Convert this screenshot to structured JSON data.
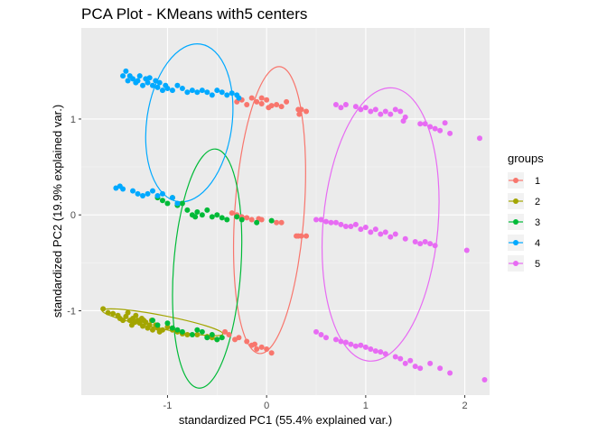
{
  "chart_data": {
    "type": "scatter",
    "title": "PCA Plot - KMeans with5 centers",
    "xlabel": "standardized PC1 (55.4% explained var.)",
    "ylabel": "standardized PC2 (19.9% explained var.)",
    "xlim": [
      -1.87,
      2.25
    ],
    "ylim": [
      -1.88,
      1.95
    ],
    "x_ticks": [
      -1,
      0,
      1,
      2
    ],
    "y_ticks": [
      -1,
      0,
      1
    ],
    "x_tick_labels": [
      "-1",
      "0",
      "1",
      "2"
    ],
    "y_tick_labels": [
      "-1",
      "0",
      "1"
    ],
    "grid": true,
    "background": "#ebebeb",
    "legend": {
      "title": "groups",
      "position": "right",
      "entries": [
        "1",
        "2",
        "3",
        "4",
        "5"
      ]
    },
    "series": [
      {
        "name": "1",
        "color": "#f8766d",
        "ellipse": {
          "cx": 0.03,
          "cy": 0.05,
          "rx": 0.35,
          "ry": 1.5,
          "angle": 4
        },
        "points": [
          [
            -0.3,
            1.18
          ],
          [
            -0.25,
            1.2
          ],
          [
            -0.2,
            1.15
          ],
          [
            -0.15,
            1.22
          ],
          [
            -0.1,
            1.18
          ],
          [
            -0.05,
            1.16
          ],
          [
            0.0,
            1.2
          ],
          [
            0.05,
            1.14
          ],
          [
            0.1,
            1.15
          ],
          [
            0.15,
            1.13
          ],
          [
            0.2,
            1.18
          ],
          [
            -0.05,
            1.22
          ],
          [
            0.02,
            1.12
          ],
          [
            0.32,
            1.1
          ],
          [
            0.35,
            1.1
          ],
          [
            0.4,
            1.08
          ],
          [
            0.33,
            1.05
          ],
          [
            -0.35,
            0.02
          ],
          [
            -0.3,
            0.0
          ],
          [
            -0.25,
            -0.02
          ],
          [
            -0.2,
            -0.03
          ],
          [
            -0.15,
            -0.05
          ],
          [
            -0.08,
            -0.04
          ],
          [
            -0.05,
            -0.05
          ],
          [
            0.1,
            -0.08
          ],
          [
            0.15,
            -0.08
          ],
          [
            0.3,
            -0.22
          ],
          [
            0.32,
            -0.22
          ],
          [
            0.35,
            -0.22
          ],
          [
            0.4,
            -0.22
          ],
          [
            -0.42,
            -1.22
          ],
          [
            -0.38,
            -1.25
          ],
          [
            -0.32,
            -1.3
          ],
          [
            -0.28,
            -1.28
          ],
          [
            -0.2,
            -1.32
          ],
          [
            -0.12,
            -1.35
          ],
          [
            -0.05,
            -1.38
          ],
          [
            -0.1,
            -1.4
          ],
          [
            0.0,
            -1.4
          ],
          [
            0.05,
            -1.44
          ],
          [
            -0.15,
            -1.36
          ]
        ]
      },
      {
        "name": "2",
        "color": "#a3a500",
        "ellipse": {
          "cx": -1.05,
          "cy": -1.12,
          "rx": 0.62,
          "ry": 0.07,
          "angle": 11
        },
        "points": [
          [
            -1.65,
            -0.98
          ],
          [
            -1.6,
            -1.02
          ],
          [
            -1.55,
            -1.03
          ],
          [
            -1.5,
            -1.05
          ],
          [
            -1.48,
            -1.08
          ],
          [
            -1.45,
            -1.1
          ],
          [
            -1.42,
            -1.06
          ],
          [
            -1.4,
            -1.02
          ],
          [
            -1.38,
            -1.1
          ],
          [
            -1.36,
            -1.15
          ],
          [
            -1.35,
            -1.08
          ],
          [
            -1.33,
            -1.12
          ],
          [
            -1.32,
            -1.05
          ],
          [
            -1.3,
            -1.1
          ],
          [
            -1.28,
            -1.13
          ],
          [
            -1.26,
            -1.08
          ],
          [
            -1.25,
            -1.16
          ],
          [
            -1.24,
            -1.1
          ],
          [
            -1.22,
            -1.12
          ],
          [
            -1.2,
            -1.18
          ],
          [
            -1.18,
            -1.15
          ],
          [
            -1.16,
            -1.1
          ],
          [
            -1.15,
            -1.2
          ],
          [
            -1.12,
            -1.15
          ],
          [
            -1.1,
            -1.18
          ],
          [
            -1.08,
            -1.22
          ],
          [
            -1.05,
            -1.2
          ],
          [
            -1.0,
            -1.17
          ],
          [
            -0.95,
            -1.2
          ],
          [
            -0.9,
            -1.22
          ],
          [
            -0.85,
            -1.24
          ],
          [
            -0.8,
            -1.25
          ],
          [
            -0.7,
            -1.25
          ],
          [
            -0.6,
            -1.27
          ],
          [
            -0.55,
            -1.28
          ],
          [
            -0.5,
            -1.3
          ]
        ]
      },
      {
        "name": "3",
        "color": "#00ba38",
        "ellipse": {
          "cx": -0.6,
          "cy": -0.56,
          "rx": 0.34,
          "ry": 1.25,
          "angle": 4
        },
        "points": [
          [
            -1.1,
            0.18
          ],
          [
            -1.05,
            0.15
          ],
          [
            -1.0,
            0.12
          ],
          [
            -0.95,
            0.18
          ],
          [
            -0.9,
            0.1
          ],
          [
            -0.85,
            0.12
          ],
          [
            -0.8,
            0.05
          ],
          [
            -0.75,
            0.0
          ],
          [
            -0.72,
            -0.02
          ],
          [
            -0.7,
            0.03
          ],
          [
            -0.65,
            0.0
          ],
          [
            -0.6,
            0.05
          ],
          [
            -0.55,
            -0.02
          ],
          [
            -0.5,
            0.0
          ],
          [
            -0.45,
            -0.03
          ],
          [
            -0.4,
            -0.05
          ],
          [
            -0.3,
            -0.02
          ],
          [
            -0.25,
            -0.05
          ],
          [
            -0.1,
            -0.08
          ],
          [
            0.05,
            -0.06
          ],
          [
            -1.15,
            -1.1
          ],
          [
            -1.1,
            -1.15
          ],
          [
            -1.0,
            -1.13
          ],
          [
            -0.95,
            -1.18
          ],
          [
            -0.9,
            -1.2
          ],
          [
            -0.85,
            -1.22
          ],
          [
            -0.75,
            -1.25
          ],
          [
            -0.7,
            -1.2
          ],
          [
            -0.65,
            -1.22
          ],
          [
            -0.6,
            -1.28
          ],
          [
            -0.55,
            -1.25
          ],
          [
            -0.5,
            -1.3
          ],
          [
            -0.45,
            -1.28
          ]
        ]
      },
      {
        "name": "4",
        "color": "#00a9ff",
        "ellipse": {
          "cx": -0.78,
          "cy": 0.96,
          "rx": 0.43,
          "ry": 0.83,
          "angle": 8
        },
        "points": [
          [
            -1.45,
            1.45
          ],
          [
            -1.42,
            1.5
          ],
          [
            -1.4,
            1.4
          ],
          [
            -1.38,
            1.45
          ],
          [
            -1.35,
            1.42
          ],
          [
            -1.32,
            1.38
          ],
          [
            -1.3,
            1.4
          ],
          [
            -1.28,
            1.45
          ],
          [
            -1.25,
            1.35
          ],
          [
            -1.22,
            1.42
          ],
          [
            -1.2,
            1.38
          ],
          [
            -1.18,
            1.43
          ],
          [
            -1.15,
            1.35
          ],
          [
            -1.12,
            1.4
          ],
          [
            -1.1,
            1.33
          ],
          [
            -1.08,
            1.38
          ],
          [
            -1.05,
            1.3
          ],
          [
            -1.02,
            1.35
          ],
          [
            -1.0,
            1.32
          ],
          [
            -0.95,
            1.3
          ],
          [
            -0.9,
            1.35
          ],
          [
            -0.85,
            1.32
          ],
          [
            -0.8,
            1.28
          ],
          [
            -0.75,
            1.3
          ],
          [
            -0.7,
            1.28
          ],
          [
            -0.65,
            1.3
          ],
          [
            -0.6,
            1.28
          ],
          [
            -0.55,
            1.25
          ],
          [
            -0.5,
            1.3
          ],
          [
            -0.45,
            1.28
          ],
          [
            -0.4,
            1.25
          ],
          [
            -0.35,
            1.27
          ],
          [
            -0.3,
            1.25
          ],
          [
            -0.28,
            1.22
          ],
          [
            -1.52,
            0.28
          ],
          [
            -1.48,
            0.3
          ],
          [
            -1.45,
            0.27
          ],
          [
            -1.35,
            0.25
          ],
          [
            -1.3,
            0.22
          ],
          [
            -1.25,
            0.2
          ],
          [
            -1.2,
            0.22
          ],
          [
            -1.15,
            0.25
          ],
          [
            -1.1,
            0.2
          ],
          [
            -1.05,
            0.22
          ],
          [
            -0.95,
            0.18
          ],
          [
            -0.9,
            0.12
          ]
        ]
      },
      {
        "name": "5",
        "color": "#e76bf3",
        "ellipse": {
          "cx": 1.15,
          "cy": -0.1,
          "rx": 0.58,
          "ry": 1.43,
          "angle": 5
        },
        "points": [
          [
            0.7,
            1.15
          ],
          [
            0.75,
            1.12
          ],
          [
            0.8,
            1.15
          ],
          [
            0.9,
            1.13
          ],
          [
            0.95,
            1.1
          ],
          [
            1.0,
            1.12
          ],
          [
            1.05,
            1.08
          ],
          [
            1.1,
            1.1
          ],
          [
            1.15,
            1.05
          ],
          [
            1.2,
            1.08
          ],
          [
            1.25,
            1.05
          ],
          [
            1.3,
            1.1
          ],
          [
            1.35,
            1.08
          ],
          [
            1.38,
            0.98
          ],
          [
            1.4,
            1.02
          ],
          [
            1.55,
            0.95
          ],
          [
            1.6,
            0.95
          ],
          [
            1.65,
            0.92
          ],
          [
            1.7,
            0.9
          ],
          [
            1.75,
            0.88
          ],
          [
            1.8,
            0.96
          ],
          [
            1.85,
            0.85
          ],
          [
            2.15,
            0.8
          ],
          [
            0.5,
            -0.05
          ],
          [
            0.55,
            -0.05
          ],
          [
            0.6,
            -0.07
          ],
          [
            0.65,
            -0.08
          ],
          [
            0.7,
            -0.08
          ],
          [
            0.75,
            -0.1
          ],
          [
            0.8,
            -0.12
          ],
          [
            0.85,
            -0.12
          ],
          [
            0.9,
            -0.1
          ],
          [
            0.95,
            -0.15
          ],
          [
            1.0,
            -0.13
          ],
          [
            1.05,
            -0.18
          ],
          [
            1.1,
            -0.15
          ],
          [
            1.15,
            -0.2
          ],
          [
            1.2,
            -0.18
          ],
          [
            1.25,
            -0.23
          ],
          [
            1.3,
            -0.2
          ],
          [
            1.4,
            -0.25
          ],
          [
            1.5,
            -0.28
          ],
          [
            1.55,
            -0.3
          ],
          [
            1.6,
            -0.28
          ],
          [
            1.65,
            -0.3
          ],
          [
            1.7,
            -0.32
          ],
          [
            2.02,
            -0.37
          ],
          [
            0.5,
            -1.22
          ],
          [
            0.55,
            -1.25
          ],
          [
            0.6,
            -1.28
          ],
          [
            0.7,
            -1.3
          ],
          [
            0.75,
            -1.32
          ],
          [
            0.8,
            -1.33
          ],
          [
            0.85,
            -1.35
          ],
          [
            0.9,
            -1.37
          ],
          [
            0.95,
            -1.36
          ],
          [
            1.0,
            -1.38
          ],
          [
            1.05,
            -1.4
          ],
          [
            1.1,
            -1.42
          ],
          [
            1.15,
            -1.43
          ],
          [
            1.2,
            -1.45
          ],
          [
            1.3,
            -1.48
          ],
          [
            1.35,
            -1.5
          ],
          [
            1.4,
            -1.55
          ],
          [
            1.45,
            -1.52
          ],
          [
            1.5,
            -1.58
          ],
          [
            1.55,
            -1.6
          ],
          [
            1.65,
            -1.55
          ],
          [
            1.75,
            -1.6
          ],
          [
            1.85,
            -1.65
          ],
          [
            2.2,
            -1.72
          ]
        ]
      }
    ]
  }
}
